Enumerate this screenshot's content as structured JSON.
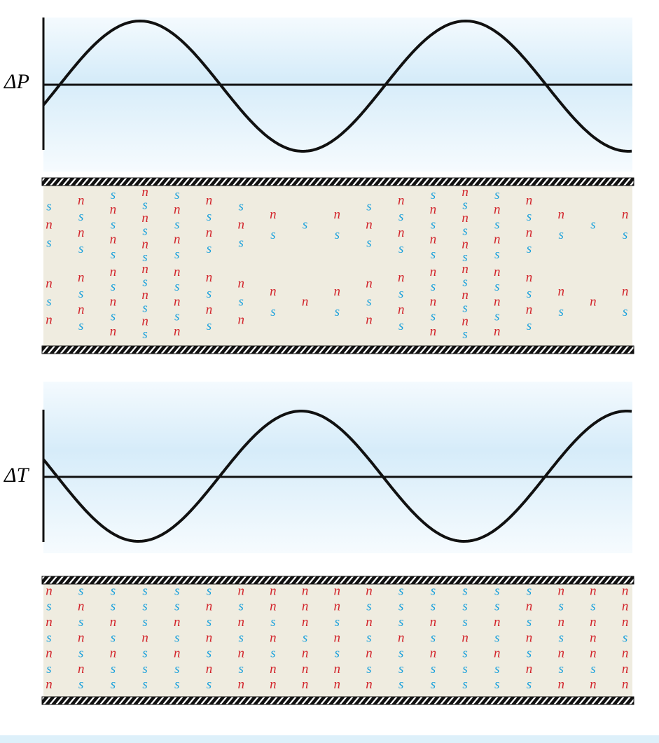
{
  "pressure_panel": {
    "label": "ΔP"
  },
  "temperature_panel": {
    "label": "ΔT"
  },
  "letter_colors": {
    "n": "#d2232a",
    "s": "#1ba1dc"
  },
  "first_sound_tube": {
    "columns": [
      {
        "upper": [
          "s",
          "n",
          "s"
        ],
        "lower": [
          "n",
          "s",
          "n"
        ]
      },
      {
        "upper": [
          "n",
          "s",
          "n",
          "s"
        ],
        "lower": [
          "n",
          "s",
          "n",
          "s"
        ]
      },
      {
        "upper": [
          "s",
          "n",
          "s",
          "n",
          "s"
        ],
        "lower": [
          "n",
          "s",
          "n",
          "s",
          "n"
        ]
      },
      {
        "upper": [
          "n",
          "s",
          "n",
          "s",
          "n",
          "s"
        ],
        "lower": [
          "n",
          "s",
          "n",
          "s",
          "n",
          "s"
        ]
      },
      {
        "upper": [
          "s",
          "n",
          "s",
          "n",
          "s"
        ],
        "lower": [
          "n",
          "s",
          "n",
          "s",
          "n"
        ]
      },
      {
        "upper": [
          "n",
          "s",
          "n",
          "s"
        ],
        "lower": [
          "n",
          "s",
          "n",
          "s"
        ]
      },
      {
        "upper": [
          "s",
          "n",
          "s"
        ],
        "lower": [
          "n",
          "s",
          "n"
        ]
      },
      {
        "upper": [
          "n",
          "s"
        ],
        "lower": [
          "n",
          "s"
        ]
      },
      {
        "upper": [
          "s"
        ],
        "lower": [
          "n"
        ]
      },
      {
        "upper": [
          "n",
          "s"
        ],
        "lower": [
          "n",
          "s"
        ]
      },
      {
        "upper": [
          "s",
          "n",
          "s"
        ],
        "lower": [
          "n",
          "s",
          "n"
        ]
      },
      {
        "upper": [
          "n",
          "s",
          "n",
          "s"
        ],
        "lower": [
          "n",
          "s",
          "n",
          "s"
        ]
      },
      {
        "upper": [
          "s",
          "n",
          "s",
          "n",
          "s"
        ],
        "lower": [
          "n",
          "s",
          "n",
          "s",
          "n"
        ]
      },
      {
        "upper": [
          "n",
          "s",
          "n",
          "s",
          "n",
          "s"
        ],
        "lower": [
          "n",
          "s",
          "n",
          "s",
          "n",
          "s"
        ]
      },
      {
        "upper": [
          "s",
          "n",
          "s",
          "n",
          "s"
        ],
        "lower": [
          "n",
          "s",
          "n",
          "s",
          "n"
        ]
      },
      {
        "upper": [
          "n",
          "s",
          "n",
          "s"
        ],
        "lower": [
          "n",
          "s",
          "n",
          "s"
        ]
      },
      {
        "upper": [
          "n",
          "s"
        ],
        "lower": [
          "n",
          "s"
        ]
      },
      {
        "upper": [
          "s"
        ],
        "lower": [
          "n"
        ]
      },
      {
        "upper": [
          "n",
          "s"
        ],
        "lower": [
          "n",
          "s"
        ]
      }
    ]
  },
  "second_sound_tube": {
    "columns": [
      [
        "n",
        "s",
        "n",
        "s",
        "n",
        "s",
        "n"
      ],
      [
        "s",
        "n",
        "s",
        "n",
        "s",
        "n",
        "s"
      ],
      [
        "s",
        "s",
        "n",
        "s",
        "n",
        "s",
        "s"
      ],
      [
        "s",
        "s",
        "s",
        "n",
        "s",
        "s",
        "s"
      ],
      [
        "s",
        "s",
        "n",
        "s",
        "n",
        "s",
        "s"
      ],
      [
        "s",
        "n",
        "s",
        "n",
        "s",
        "n",
        "s"
      ],
      [
        "n",
        "s",
        "n",
        "s",
        "n",
        "s",
        "n"
      ],
      [
        "n",
        "n",
        "s",
        "n",
        "s",
        "n",
        "n"
      ],
      [
        "n",
        "n",
        "n",
        "s",
        "n",
        "n",
        "n"
      ],
      [
        "n",
        "n",
        "s",
        "n",
        "s",
        "n",
        "n"
      ],
      [
        "n",
        "s",
        "n",
        "s",
        "n",
        "s",
        "n"
      ],
      [
        "s",
        "s",
        "s",
        "n",
        "s",
        "s",
        "s"
      ],
      [
        "s",
        "s",
        "n",
        "s",
        "n",
        "s",
        "s"
      ],
      [
        "s",
        "s",
        "s",
        "n",
        "s",
        "s",
        "s"
      ],
      [
        "s",
        "s",
        "n",
        "s",
        "n",
        "s",
        "s"
      ],
      [
        "s",
        "n",
        "s",
        "n",
        "s",
        "n",
        "s"
      ],
      [
        "n",
        "s",
        "n",
        "s",
        "n",
        "s",
        "n"
      ],
      [
        "n",
        "s",
        "n",
        "n",
        "n",
        "s",
        "n"
      ],
      [
        "n",
        "n",
        "n",
        "s",
        "n",
        "n",
        "n"
      ]
    ]
  }
}
